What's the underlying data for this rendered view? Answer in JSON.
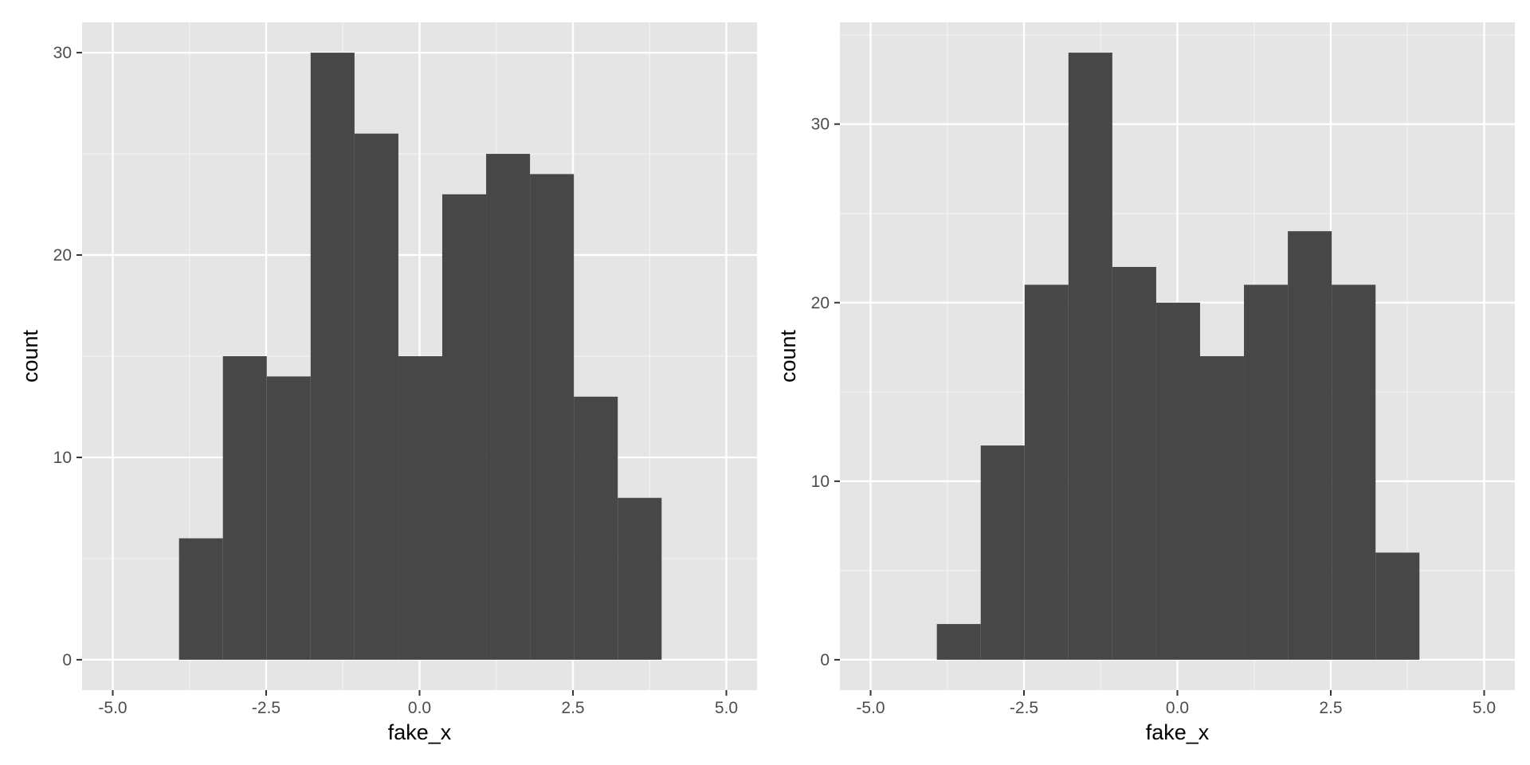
{
  "chart_data": [
    {
      "type": "bar",
      "variant": "histogram",
      "xlabel": "fake_x",
      "ylabel": "count",
      "xlim": [
        -5.5,
        5.5
      ],
      "ylim": [
        -1.5,
        31.5
      ],
      "xticks": [
        -5.0,
        -2.5,
        0.0,
        2.5,
        5.0
      ],
      "xtick_labels": [
        "-5.0",
        "-2.5",
        "0.0",
        "2.5",
        "5.0"
      ],
      "yticks": [
        0,
        10,
        20,
        30
      ],
      "ytick_labels": [
        "0",
        "10",
        "20",
        "30"
      ],
      "grid": true,
      "bar_color": "#474747",
      "panel_color": "#e5e5e5",
      "bins": [
        {
          "x0": -3.92,
          "x1": -3.205,
          "count": 6
        },
        {
          "x0": -3.205,
          "x1": -2.49,
          "count": 15
        },
        {
          "x0": -2.49,
          "x1": -1.775,
          "count": 14
        },
        {
          "x0": -1.775,
          "x1": -1.06,
          "count": 30
        },
        {
          "x0": -1.06,
          "x1": -0.345,
          "count": 26
        },
        {
          "x0": -0.345,
          "x1": 0.37,
          "count": 15
        },
        {
          "x0": 0.37,
          "x1": 1.085,
          "count": 23
        },
        {
          "x0": 1.085,
          "x1": 1.8,
          "count": 25
        },
        {
          "x0": 1.8,
          "x1": 2.515,
          "count": 24
        },
        {
          "x0": 2.515,
          "x1": 3.23,
          "count": 13
        },
        {
          "x0": 3.23,
          "x1": 3.945,
          "count": 8
        }
      ]
    },
    {
      "type": "bar",
      "variant": "histogram",
      "xlabel": "fake_x",
      "ylabel": "count",
      "xlim": [
        -5.5,
        5.5
      ],
      "ylim": [
        -1.7,
        35.7
      ],
      "xticks": [
        -5.0,
        -2.5,
        0.0,
        2.5,
        5.0
      ],
      "xtick_labels": [
        "-5.0",
        "-2.5",
        "0.0",
        "2.5",
        "5.0"
      ],
      "yticks": [
        0,
        10,
        20,
        30
      ],
      "ytick_labels": [
        "0",
        "10",
        "20",
        "30"
      ],
      "grid": true,
      "bar_color": "#474747",
      "panel_color": "#e5e5e5",
      "bins": [
        {
          "x0": -3.92,
          "x1": -3.205,
          "count": 2
        },
        {
          "x0": -3.205,
          "x1": -2.49,
          "count": 12
        },
        {
          "x0": -2.49,
          "x1": -1.775,
          "count": 21
        },
        {
          "x0": -1.775,
          "x1": -1.06,
          "count": 34
        },
        {
          "x0": -1.06,
          "x1": -0.345,
          "count": 22
        },
        {
          "x0": -0.345,
          "x1": 0.37,
          "count": 20
        },
        {
          "x0": 0.37,
          "x1": 1.085,
          "count": 17
        },
        {
          "x0": 1.085,
          "x1": 1.8,
          "count": 21
        },
        {
          "x0": 1.8,
          "x1": 2.515,
          "count": 24
        },
        {
          "x0": 2.515,
          "x1": 3.23,
          "count": 21
        },
        {
          "x0": 3.23,
          "x1": 3.945,
          "count": 6
        }
      ]
    }
  ]
}
